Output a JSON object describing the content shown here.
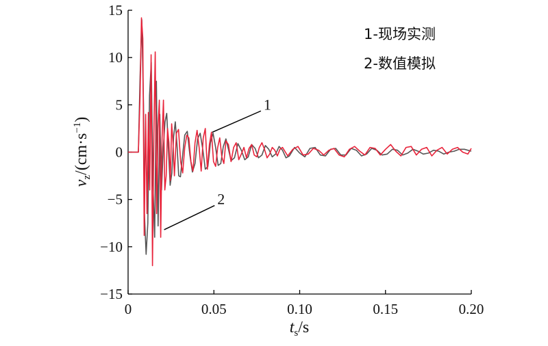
{
  "chart_data": {
    "type": "line",
    "xlabel": {
      "main": "t",
      "sub": "s",
      "unit": "/s"
    },
    "ylabel": {
      "main": "v",
      "sub": "z",
      "unit_pre": "/(cm·s",
      "unit_sup": "−1",
      "unit_post": ")"
    },
    "xlim": [
      0,
      0.2
    ],
    "ylim": [
      -15,
      15
    ],
    "xticks": [
      {
        "v": 0,
        "label": "0"
      },
      {
        "v": 0.05,
        "label": "0.05"
      },
      {
        "v": 0.1,
        "label": "0.10"
      },
      {
        "v": 0.15,
        "label": "0.15"
      },
      {
        "v": 0.2,
        "label": "0.20"
      }
    ],
    "yticks": [
      {
        "v": 15,
        "label": "15"
      },
      {
        "v": 10,
        "label": "10"
      },
      {
        "v": 5,
        "label": "5"
      },
      {
        "v": 0,
        "label": "0"
      },
      {
        "v": -5,
        "label": "−5"
      },
      {
        "v": -10,
        "label": "−10"
      },
      {
        "v": -15,
        "label": "−15"
      }
    ],
    "grid": false,
    "legend": {
      "placement": "top-right",
      "entries": [
        "1-现场实测",
        "2-数值模拟"
      ]
    },
    "annotations": [
      {
        "text": "1",
        "series": 0,
        "point": [
          0.049,
          2.1
        ],
        "label_at": [
          0.079,
          4.5
        ]
      },
      {
        "text": "2",
        "series": 1,
        "point": [
          0.021,
          -8.2
        ],
        "label_at": [
          0.052,
          -5.5
        ]
      }
    ],
    "series": [
      {
        "color": "#555555",
        "x": [
          0,
          0.006,
          0.007,
          0.008,
          0.009,
          0.0095,
          0.0105,
          0.0115,
          0.0125,
          0.0135,
          0.0145,
          0.0155,
          0.0165,
          0.0175,
          0.0185,
          0.0195,
          0.0205,
          0.0215,
          0.0225,
          0.0235,
          0.0245,
          0.0255,
          0.0265,
          0.0275,
          0.0285,
          0.0295,
          0.0305,
          0.0315,
          0.033,
          0.0345,
          0.036,
          0.0375,
          0.039,
          0.0405,
          0.042,
          0.0435,
          0.045,
          0.0465,
          0.048,
          0.0495,
          0.051,
          0.0525,
          0.054,
          0.0555,
          0.057,
          0.0585,
          0.06,
          0.062,
          0.064,
          0.066,
          0.068,
          0.07,
          0.072,
          0.074,
          0.076,
          0.078,
          0.08,
          0.082,
          0.084,
          0.086,
          0.088,
          0.09,
          0.092,
          0.094,
          0.097,
          0.1,
          0.103,
          0.106,
          0.109,
          0.112,
          0.115,
          0.118,
          0.121,
          0.124,
          0.127,
          0.13,
          0.133,
          0.136,
          0.139,
          0.142,
          0.145,
          0.148,
          0.151,
          0.154,
          0.157,
          0.16,
          0.163,
          0.166,
          0.169,
          0.172,
          0.175,
          0.178,
          0.181,
          0.184,
          0.187,
          0.19,
          0.193,
          0.196,
          0.2
        ],
        "y": [
          0,
          0,
          8.0,
          14.0,
          5.0,
          -6.5,
          -10.8,
          -7.5,
          6.0,
          9.5,
          -3.5,
          -9.0,
          7.5,
          -7.8,
          4.0,
          -4.0,
          0.5,
          3.2,
          4.1,
          0.3,
          -3.5,
          -2.2,
          1.6,
          3.2,
          0.8,
          -2.5,
          -2.6,
          -0.8,
          1.8,
          2.2,
          -0.3,
          -2.1,
          -1.2,
          1.4,
          2.0,
          0.3,
          -1.8,
          -1.5,
          1.0,
          2.0,
          0.5,
          -1.4,
          -1.2,
          0.6,
          1.4,
          0.3,
          -0.9,
          -0.6,
          0.9,
          0.2,
          -0.8,
          -0.5,
          0.8,
          0.4,
          -0.6,
          -0.3,
          0.7,
          0.3,
          -0.5,
          -0.2,
          0.6,
          0.2,
          -0.6,
          -0.4,
          0.5,
          -0.1,
          -0.5,
          0.4,
          0.5,
          -0.3,
          -0.4,
          0.3,
          0.4,
          -0.3,
          -0.3,
          0.4,
          0.2,
          -0.4,
          -0.2,
          0.4,
          0.2,
          -0.3,
          -0.2,
          0.3,
          0.2,
          -0.3,
          -0.1,
          0.3,
          0.1,
          -0.2,
          -0.1,
          0.2,
          0.1,
          -0.2,
          0,
          0.1,
          0.3,
          0.3,
          0.1
        ]
      },
      {
        "color": "#e8233a",
        "x": [
          0,
          0.006,
          0.007,
          0.0078,
          0.0086,
          0.0094,
          0.0102,
          0.011,
          0.0118,
          0.0126,
          0.0134,
          0.0142,
          0.015,
          0.0158,
          0.0166,
          0.0174,
          0.0182,
          0.019,
          0.0198,
          0.0206,
          0.0214,
          0.0222,
          0.023,
          0.0238,
          0.0246,
          0.0254,
          0.0262,
          0.027,
          0.0282,
          0.0294,
          0.0306,
          0.0318,
          0.033,
          0.0342,
          0.0354,
          0.0366,
          0.0378,
          0.039,
          0.0402,
          0.0414,
          0.0426,
          0.0438,
          0.045,
          0.0462,
          0.0474,
          0.0486,
          0.0498,
          0.051,
          0.0522,
          0.0534,
          0.0546,
          0.0558,
          0.057,
          0.0585,
          0.06,
          0.0615,
          0.063,
          0.0645,
          0.066,
          0.0675,
          0.069,
          0.0705,
          0.072,
          0.0735,
          0.075,
          0.0765,
          0.078,
          0.0795,
          0.081,
          0.0825,
          0.084,
          0.0855,
          0.087,
          0.0885,
          0.09,
          0.093,
          0.096,
          0.099,
          0.102,
          0.105,
          0.108,
          0.111,
          0.114,
          0.117,
          0.12,
          0.123,
          0.126,
          0.129,
          0.132,
          0.135,
          0.138,
          0.141,
          0.144,
          0.147,
          0.15,
          0.153,
          0.156,
          0.159,
          0.162,
          0.165,
          0.168,
          0.171,
          0.174,
          0.177,
          0.18,
          0.183,
          0.186,
          0.189,
          0.192,
          0.195,
          0.198,
          0.2
        ],
        "y": [
          0,
          0,
          6.0,
          14.2,
          12.0,
          -8.8,
          4.0,
          -6.5,
          4.2,
          -4.0,
          10.3,
          -12.0,
          2.0,
          10.6,
          -6.5,
          2.5,
          5.5,
          -9.0,
          1.5,
          5.5,
          -4.0,
          -2.5,
          2.5,
          1.0,
          -3.0,
          3.0,
          1.0,
          -2.5,
          2.0,
          2.4,
          -1.0,
          -2.2,
          0.5,
          1.8,
          1.5,
          -1.0,
          -2.0,
          1.0,
          2.3,
          0.5,
          -2.0,
          1.5,
          2.5,
          -1.8,
          0.8,
          2.1,
          -1.0,
          -1.5,
          0.5,
          1.5,
          -0.5,
          -1.2,
          1.2,
          0.8,
          -1.0,
          0.5,
          1.0,
          -0.8,
          -0.2,
          0.5,
          -0.6,
          0.4,
          0.8,
          -0.3,
          -0.5,
          0.5,
          1.0,
          0.3,
          -0.6,
          -0.2,
          0.5,
          0.2,
          -0.4,
          0.3,
          0.5,
          -0.4,
          0.3,
          0.6,
          -0.3,
          -0.2,
          0.4,
          0.2,
          -0.3,
          0.2,
          0.4,
          -0.3,
          -0.5,
          0.3,
          0.6,
          0.1,
          -0.3,
          0.5,
          0.4,
          -0.3,
          0.3,
          0.8,
          0.1,
          -0.4,
          0.5,
          0.6,
          -0.3,
          0.3,
          0.5,
          -0.4,
          0.2,
          0.5,
          -0.2,
          0.3,
          0.5,
          0,
          -0.2,
          0.4
        ]
      }
    ]
  }
}
